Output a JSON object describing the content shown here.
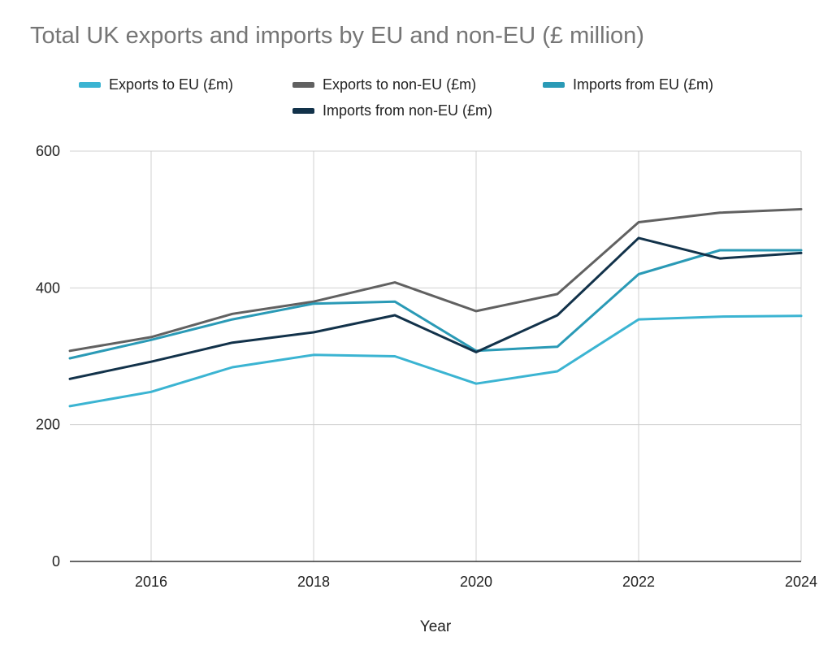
{
  "chart_data": {
    "type": "line",
    "title": "Total UK exports and imports by EU and non-EU (£ million)",
    "xlabel": "Year",
    "ylabel": "",
    "x": [
      2015,
      2016,
      2017,
      2018,
      2019,
      2020,
      2021,
      2022,
      2023,
      2024
    ],
    "xlim": [
      2015,
      2024
    ],
    "ylim": [
      0,
      600
    ],
    "x_ticks": [
      2016,
      2018,
      2020,
      2022,
      2024
    ],
    "y_ticks": [
      0,
      200,
      400,
      600
    ],
    "grid": true,
    "legend_position": "top",
    "series": [
      {
        "name": "Exports to EU (£m)",
        "color": "#3bb4d2",
        "values": [
          227,
          248,
          284,
          302,
          300,
          260,
          278,
          354,
          358,
          359
        ]
      },
      {
        "name": "Exports to non-EU (£m)",
        "color": "#616161",
        "values": [
          308,
          328,
          362,
          380,
          408,
          366,
          391,
          496,
          510,
          515
        ]
      },
      {
        "name": "Imports from EU (£m)",
        "color": "#2a9ab6",
        "values": [
          297,
          324,
          354,
          377,
          380,
          308,
          314,
          420,
          455,
          455
        ]
      },
      {
        "name": "Imports from non-EU (£m)",
        "color": "#12324a",
        "values": [
          267,
          292,
          320,
          335,
          360,
          306,
          360,
          473,
          443,
          451
        ]
      }
    ]
  }
}
